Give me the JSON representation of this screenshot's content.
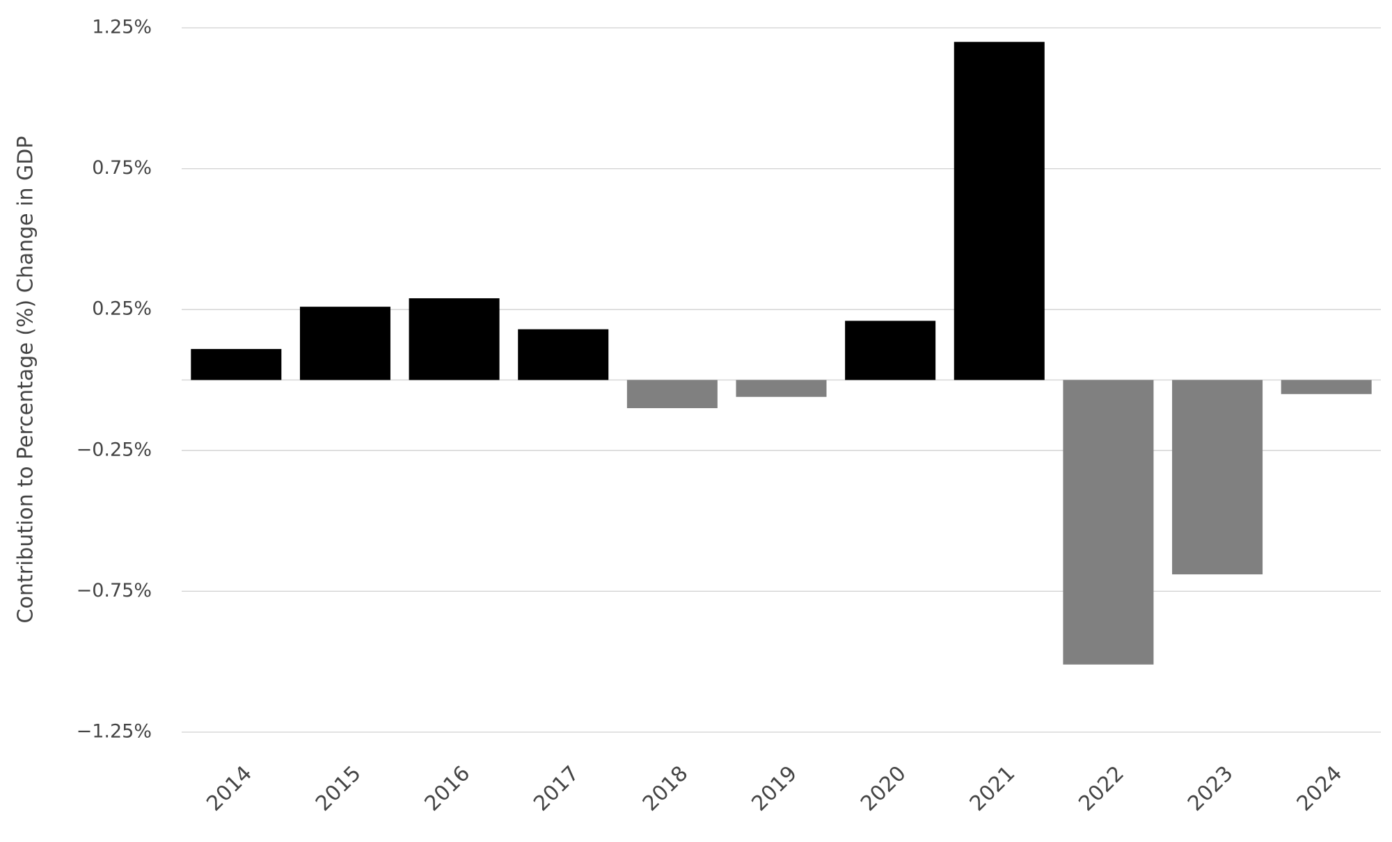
{
  "chart_data": {
    "type": "bar",
    "y_label": "Contribution to Percentage (%) Change in GDP",
    "categories": [
      "2014",
      "2015",
      "2016",
      "2017",
      "2018",
      "2019",
      "2020",
      "2021",
      "2022",
      "2023",
      "2024"
    ],
    "values": [
      0.11,
      0.26,
      0.29,
      0.18,
      -0.1,
      -0.06,
      0.21,
      1.2,
      -1.01,
      -0.69,
      -0.05
    ],
    "positive_color": "#000000",
    "negative_color": "#808080",
    "ylim": [
      -1.25,
      1.25
    ],
    "yticks": [
      {
        "value": 1.25,
        "label": "1.25%"
      },
      {
        "value": 0.75,
        "label": "0.75%"
      },
      {
        "value": 0.25,
        "label": "0.25%"
      },
      {
        "value": -0.25,
        "label": "−0.25%"
      },
      {
        "value": -0.75,
        "label": "−0.75%"
      },
      {
        "value": -1.25,
        "label": "−1.25%"
      }
    ],
    "grid": true
  }
}
